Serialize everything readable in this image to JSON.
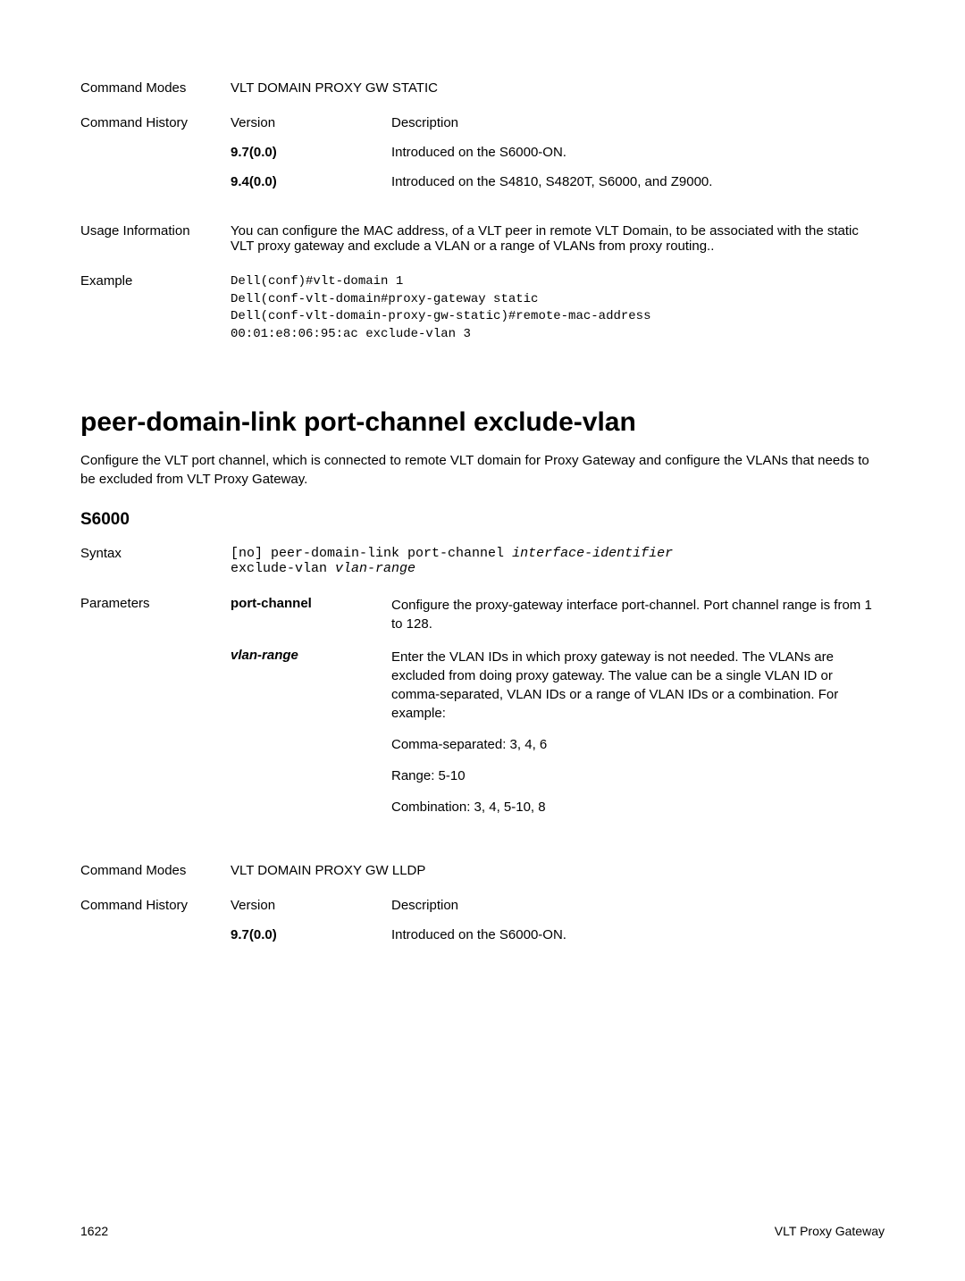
{
  "section1": {
    "commandModes": {
      "label": "Command Modes",
      "value": "VLT DOMAIN PROXY GW STATIC"
    },
    "commandHistory": {
      "label": "Command History",
      "headers": {
        "version": "Version",
        "description": "Description"
      },
      "rows": [
        {
          "version": "9.7(0.0)",
          "description": "Introduced on the S6000-ON."
        },
        {
          "version": "9.4(0.0)",
          "description": "Introduced on the S4810, S4820T, S6000, and Z9000."
        }
      ]
    },
    "usageInfo": {
      "label": "Usage Information",
      "text": "You can configure the MAC address, of a VLT peer in remote VLT Domain, to be associated with the static VLT proxy gateway and exclude a VLAN or a range of VLANs from proxy routing.."
    },
    "example": {
      "label": "Example",
      "code": "Dell(conf)#vlt-domain 1\nDell(conf-vlt-domain#proxy-gateway static\nDell(conf-vlt-domain-proxy-gw-static)#remote-mac-address\n00:01:e8:06:95:ac exclude-vlan 3"
    }
  },
  "mainHeading": "peer-domain-link port-channel exclude-vlan",
  "introText": "Configure the VLT port channel, which is connected to remote VLT domain for Proxy Gateway and configure the VLANs that needs to be excluded from VLT Proxy Gateway.",
  "subHeading": "S6000",
  "section2": {
    "syntax": {
      "label": "Syntax",
      "code1": "[no] peer-domain-link port-channel ",
      "codeItalic": "interface-identifier",
      "code2": "exclude-vlan ",
      "code2Italic": "vlan-range"
    },
    "parameters": {
      "label": "Parameters",
      "rows": [
        {
          "name": "port-channel",
          "nameBold": true,
          "desc": "Configure the proxy-gateway interface port-channel. Port channel range is from 1 to 128."
        },
        {
          "name": "vlan-range",
          "nameItalic": true,
          "desc": "Enter the VLAN IDs in which proxy gateway is not needed. The VLANs are excluded from doing proxy gateway. The value can be a single VLAN ID or comma-separated, VLAN IDs or a range of VLAN IDs or a combination. For example:",
          "extra": [
            "Comma-separated: 3, 4, 6",
            "Range: 5-10",
            "Combination: 3, 4, 5-10, 8"
          ]
        }
      ]
    },
    "commandModes": {
      "label": "Command Modes",
      "value": "VLT DOMAIN PROXY GW LLDP"
    },
    "commandHistory": {
      "label": "Command History",
      "headers": {
        "version": "Version",
        "description": "Description"
      },
      "rows": [
        {
          "version": "9.7(0.0)",
          "description": "Introduced on the S6000-ON."
        }
      ]
    }
  },
  "footer": {
    "pageNumber": "1622",
    "sectionName": "VLT Proxy Gateway"
  }
}
